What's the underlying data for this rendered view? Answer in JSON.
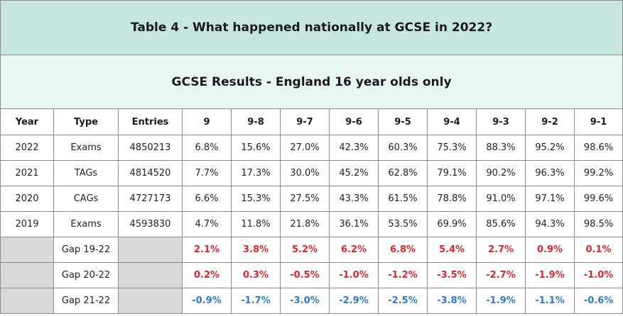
{
  "title": "Table 4 - What happened nationally at GCSE in 2022?",
  "subtitle": "GCSE Results - England 16 year olds only",
  "headers": [
    "Year",
    "Type",
    "Entries",
    "9",
    "9-8",
    "9-7",
    "9-6",
    "9-5",
    "9-4",
    "9-3",
    "9-2",
    "9-1"
  ],
  "rows": [
    {
      "year": "2022",
      "type": "Exams",
      "entries": "4850213",
      "values": [
        "6.8%",
        "15.6%",
        "27.0%",
        "42.3%",
        "60.3%",
        "75.3%",
        "88.3%",
        "95.2%",
        "98.6%"
      ]
    },
    {
      "year": "2021",
      "type": "TAGs",
      "entries": "4814520",
      "values": [
        "7.7%",
        "17.3%",
        "30.0%",
        "45.2%",
        "62.8%",
        "79.1%",
        "90.2%",
        "96.3%",
        "99.2%"
      ]
    },
    {
      "year": "2020",
      "type": "CAGs",
      "entries": "4727173",
      "values": [
        "6.6%",
        "15.3%",
        "27.5%",
        "43.3%",
        "61.5%",
        "78.8%",
        "91.0%",
        "97.1%",
        "99.6%"
      ]
    },
    {
      "year": "2019",
      "type": "Exams",
      "entries": "4593830",
      "values": [
        "4.7%",
        "11.8%",
        "21.8%",
        "36.1%",
        "53.5%",
        "69.9%",
        "85.6%",
        "94.3%",
        "98.5%"
      ]
    }
  ],
  "gaps": [
    {
      "label": "Gap 19-22",
      "values": [
        "2.1%",
        "3.8%",
        "5.2%",
        "6.2%",
        "6.8%",
        "5.4%",
        "2.7%",
        "0.9%",
        "0.1%"
      ],
      "color": "#e0242c"
    },
    {
      "label": "Gap 20-22",
      "values": [
        "0.2%",
        "0.3%",
        "-0.5%",
        "-1.0%",
        "-1.2%",
        "-3.5%",
        "-2.7%",
        "-1.9%",
        "-1.0%"
      ],
      "color": "#e0242c"
    },
    {
      "label": "Gap 21-22",
      "values": [
        "-0.9%",
        "-1.7%",
        "-3.0%",
        "-2.9%",
        "-2.5%",
        "-3.8%",
        "-1.9%",
        "-1.1%",
        "-0.6%"
      ],
      "color": "#2a7bd6"
    }
  ],
  "colors": {
    "title_bg": "#c7e6df",
    "subtitle_bg": "#e7f7f3",
    "grey_cell": "#d9d9d9",
    "red": "#e0242c",
    "blue": "#2a7bd6"
  }
}
